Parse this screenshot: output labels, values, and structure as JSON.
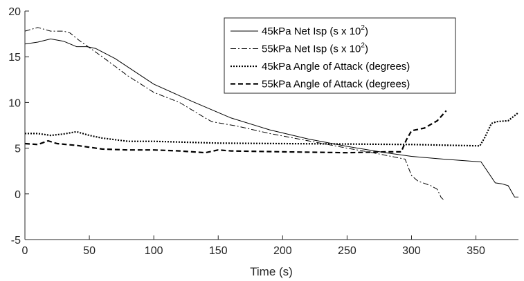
{
  "chart_data": {
    "type": "line",
    "xlabel": "Time (s)",
    "ylabel": "",
    "xlim": [
      0,
      383
    ],
    "ylim": [
      -5,
      20
    ],
    "xticks": [
      0,
      50,
      100,
      150,
      200,
      250,
      300,
      350
    ],
    "yticks": [
      -5,
      0,
      5,
      10,
      15,
      20
    ],
    "grid": false,
    "legend_position": "top-right",
    "series": [
      {
        "name": "45kPa Net Isp (s x 10",
        "name_superscript": "2",
        "name_suffix": ")",
        "style": "solid",
        "points": [
          [
            0,
            16.4
          ],
          [
            10,
            16.6
          ],
          [
            20,
            16.95
          ],
          [
            30,
            16.7
          ],
          [
            40,
            16.1
          ],
          [
            48,
            16.1
          ],
          [
            55,
            15.9
          ],
          [
            70,
            14.8
          ],
          [
            100,
            12.0
          ],
          [
            130,
            10.1
          ],
          [
            160,
            8.3
          ],
          [
            190,
            7.0
          ],
          [
            220,
            6.0
          ],
          [
            250,
            5.2
          ],
          [
            280,
            4.5
          ],
          [
            300,
            4.1
          ],
          [
            325,
            3.8
          ],
          [
            354,
            3.5
          ],
          [
            365,
            1.2
          ],
          [
            370,
            1.1
          ],
          [
            375,
            0.9
          ],
          [
            380,
            -0.35
          ],
          [
            383,
            -0.35
          ]
        ]
      },
      {
        "name": "55kPa Net Isp (s x 10",
        "name_superscript": "2",
        "name_suffix": ")",
        "style": "dashdot",
        "points": [
          [
            0,
            17.8
          ],
          [
            10,
            18.2
          ],
          [
            20,
            17.8
          ],
          [
            30,
            17.8
          ],
          [
            35,
            17.6
          ],
          [
            42,
            16.8
          ],
          [
            50,
            16.0
          ],
          [
            60,
            15.0
          ],
          [
            80,
            12.9
          ],
          [
            100,
            11.1
          ],
          [
            120,
            10.0
          ],
          [
            140,
            8.3
          ],
          [
            145,
            7.9
          ],
          [
            165,
            7.4
          ],
          [
            190,
            6.6
          ],
          [
            220,
            5.8
          ],
          [
            250,
            5.0
          ],
          [
            270,
            4.5
          ],
          [
            295,
            3.8
          ],
          [
            300,
            2.0
          ],
          [
            305,
            1.4
          ],
          [
            315,
            0.9
          ],
          [
            320,
            0.5
          ],
          [
            323,
            -0.4
          ],
          [
            325,
            -0.65
          ]
        ]
      },
      {
        "name": "45kPa Angle of Attack (degrees)",
        "style": "dotted",
        "points": [
          [
            0,
            6.6
          ],
          [
            10,
            6.6
          ],
          [
            20,
            6.4
          ],
          [
            30,
            6.55
          ],
          [
            40,
            6.8
          ],
          [
            50,
            6.4
          ],
          [
            60,
            6.1
          ],
          [
            80,
            5.75
          ],
          [
            100,
            5.75
          ],
          [
            150,
            5.55
          ],
          [
            200,
            5.5
          ],
          [
            250,
            5.45
          ],
          [
            300,
            5.4
          ],
          [
            353,
            5.25
          ],
          [
            357,
            6.2
          ],
          [
            362,
            7.7
          ],
          [
            366,
            7.9
          ],
          [
            375,
            8.0
          ],
          [
            383,
            8.9
          ]
        ]
      },
      {
        "name": "55kPa Angle of Attack (degrees)",
        "style": "dashed",
        "points": [
          [
            0,
            5.5
          ],
          [
            10,
            5.4
          ],
          [
            18,
            5.8
          ],
          [
            25,
            5.5
          ],
          [
            40,
            5.3
          ],
          [
            60,
            4.9
          ],
          [
            80,
            4.8
          ],
          [
            100,
            4.8
          ],
          [
            120,
            4.7
          ],
          [
            140,
            4.5
          ],
          [
            150,
            4.8
          ],
          [
            160,
            4.7
          ],
          [
            200,
            4.6
          ],
          [
            250,
            4.5
          ],
          [
            280,
            4.6
          ],
          [
            292,
            4.6
          ],
          [
            296,
            5.9
          ],
          [
            300,
            6.9
          ],
          [
            310,
            7.2
          ],
          [
            320,
            8.0
          ],
          [
            327,
            9.1
          ]
        ]
      }
    ]
  },
  "colors": {
    "line": "#000000",
    "axis": "#262626"
  }
}
